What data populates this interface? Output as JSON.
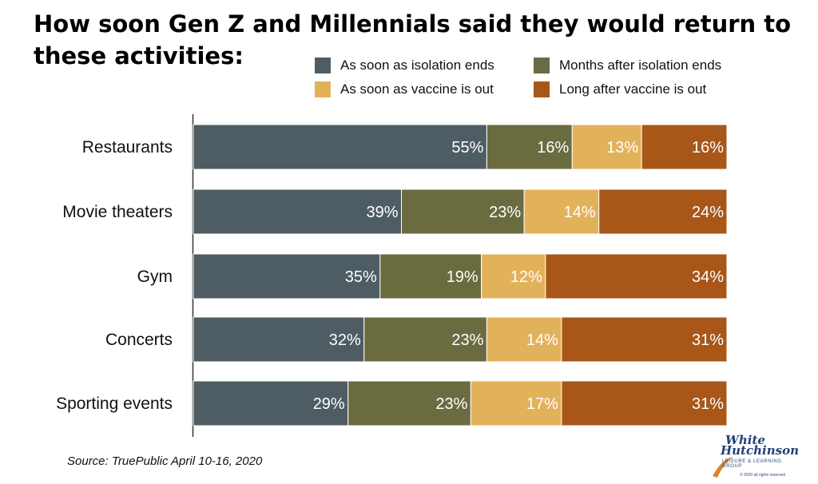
{
  "title": "How soon Gen Z and Millennials said they would return to these activities:",
  "source": "Source: TruePublic April 10-16, 2020",
  "logo": {
    "line1": "White",
    "line2": "Hutchinson",
    "tagline": "LEISURE & LEARNING GROUP",
    "copyright": "© 2020 all rights reserved"
  },
  "colors": {
    "as_soon_isolation": "#4e5d63",
    "months_after_isolation": "#6b6b40",
    "as_soon_vaccine": "#e2b25b",
    "long_after_vaccine": "#a85718"
  },
  "chart_data": {
    "type": "bar",
    "orientation": "horizontal",
    "stacked": true,
    "categories": [
      "Restaurants",
      "Movie theaters",
      "Gym",
      "Concerts",
      "Sporting events"
    ],
    "series": [
      {
        "name": "As soon as isolation ends",
        "values": [
          55,
          39,
          35,
          32,
          29
        ],
        "labels": [
          "55%",
          "39%",
          "35%",
          "32%",
          "29%"
        ],
        "color": "#4e5d63"
      },
      {
        "name": "Months after isolation ends",
        "values": [
          16,
          23,
          19,
          23,
          23
        ],
        "labels": [
          "16%",
          "23%",
          "19%",
          "23%",
          "23%"
        ],
        "color": "#6b6b40"
      },
      {
        "name": "As soon as vaccine is out",
        "values": [
          13,
          14,
          12,
          14,
          17
        ],
        "labels": [
          "13%",
          "14%",
          "12%",
          "14%",
          "17%"
        ],
        "color": "#e2b25b"
      },
      {
        "name": "Long after vaccine is out",
        "values": [
          16,
          24,
          34,
          31,
          31
        ],
        "labels": [
          "16%",
          "24%",
          "34%",
          "31%",
          "31%"
        ],
        "color": "#a85718"
      }
    ],
    "legend_placement": "top-right",
    "grid": false
  }
}
